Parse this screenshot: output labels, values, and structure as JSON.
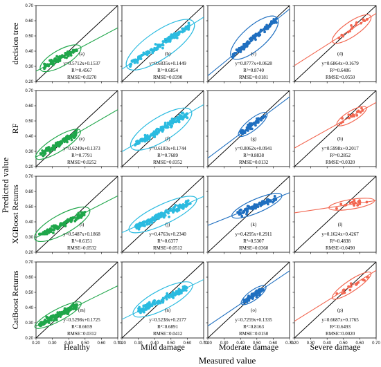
{
  "figure": {
    "xlabel": "Measured value",
    "ylabel": "Predicted value",
    "columns": [
      "Healthy",
      "Mild damage",
      "Moderate damage",
      "Severe damage"
    ],
    "rows": [
      "decision tree",
      "RF",
      "XGBoost Returns",
      "CatBoost Returns"
    ],
    "colors": [
      "#1fa64a",
      "#2bbbe0",
      "#1f6fc0",
      "#f26650"
    ]
  },
  "chart_data": [
    {
      "type": "scatter",
      "row": "decision tree",
      "column": "Healthy",
      "label": "(a)",
      "equation": "y=0.5712x+0.1537",
      "r2": "R²=0.4567",
      "rmse": "RMSE=0.0270",
      "slope": 0.5712,
      "intercept": 0.1537,
      "x_range": [
        0.25,
        0.45
      ],
      "y_range": [
        0.26,
        0.45
      ],
      "n": 90,
      "xlim": [
        0.2,
        0.7
      ],
      "ylim": [
        0.2,
        0.7
      ]
    },
    {
      "type": "scatter",
      "row": "decision tree",
      "column": "Mild damage",
      "label": "(b)",
      "equation": "y=0.6835x+0.1449",
      "r2": "R²=0.6854",
      "rmse": "RMSE=0.0390",
      "slope": 0.6835,
      "intercept": 0.1449,
      "x_range": [
        0.25,
        0.62
      ],
      "y_range": [
        0.3,
        0.62
      ],
      "n": 140,
      "xlim": [
        0.2,
        0.7
      ],
      "ylim": [
        0.2,
        0.7
      ]
    },
    {
      "type": "scatter",
      "row": "decision tree",
      "column": "Moderate damage",
      "label": "(c)",
      "equation": "y=0.8777x+0.0628",
      "r2": "R²=0.8740",
      "rmse": "RMSE=0.0181",
      "slope": 0.8777,
      "intercept": 0.0628,
      "x_range": [
        0.35,
        0.62
      ],
      "y_range": [
        0.35,
        0.62
      ],
      "n": 110,
      "xlim": [
        0.2,
        0.7
      ],
      "ylim": [
        0.2,
        0.7
      ]
    },
    {
      "type": "scatter",
      "row": "decision tree",
      "column": "Severe damage",
      "label": "(d)",
      "equation": "y=0.6864x+0.1679",
      "r2": "R²=0.6486",
      "rmse": "RMSE=0.0550",
      "slope": 0.6864,
      "intercept": 0.1679,
      "x_range": [
        0.45,
        0.65
      ],
      "y_range": [
        0.45,
        0.62
      ],
      "n": 16,
      "xlim": [
        0.2,
        0.7
      ],
      "ylim": [
        0.2,
        0.7
      ]
    },
    {
      "type": "scatter",
      "row": "RF",
      "column": "Healthy",
      "label": "(e)",
      "equation": "y=0.6249x+0.1373",
      "r2": "R²=0.7791",
      "rmse": "RMSE=0.0252",
      "slope": 0.6249,
      "intercept": 0.1373,
      "x_range": [
        0.22,
        0.45
      ],
      "y_range": [
        0.27,
        0.44
      ],
      "n": 110,
      "xlim": [
        0.2,
        0.7
      ],
      "ylim": [
        0.2,
        0.7
      ]
    },
    {
      "type": "scatter",
      "row": "RF",
      "column": "Mild damage",
      "label": "(f)",
      "equation": "y=0.6183x+0.1744",
      "r2": "R²=0.7689",
      "rmse": "RMSE=0.0352",
      "slope": 0.6183,
      "intercept": 0.1744,
      "x_range": [
        0.28,
        0.6
      ],
      "y_range": [
        0.3,
        0.58
      ],
      "n": 150,
      "xlim": [
        0.2,
        0.7
      ],
      "ylim": [
        0.2,
        0.7
      ]
    },
    {
      "type": "scatter",
      "row": "RF",
      "column": "Moderate damage",
      "label": "(g)",
      "equation": "y=0.8062x+0.0941",
      "r2": "R²=0.8838",
      "rmse": "RMSE=0.0132",
      "slope": 0.8062,
      "intercept": 0.0941,
      "x_range": [
        0.4,
        0.55
      ],
      "y_range": [
        0.4,
        0.53
      ],
      "n": 70,
      "xlim": [
        0.2,
        0.7
      ],
      "ylim": [
        0.2,
        0.7
      ]
    },
    {
      "type": "scatter",
      "row": "RF",
      "column": "Severe damage",
      "label": "(h)",
      "equation": "y=0.5998x+0.2017",
      "r2": "R²=0.2852",
      "rmse": "RMSE=0.0320",
      "slope": 0.5998,
      "intercept": 0.2017,
      "x_range": [
        0.48,
        0.62
      ],
      "y_range": [
        0.48,
        0.6
      ],
      "n": 16,
      "xlim": [
        0.2,
        0.7
      ],
      "ylim": [
        0.2,
        0.7
      ]
    },
    {
      "type": "scatter",
      "row": "XGBoost Returns",
      "column": "Healthy",
      "label": "(i)",
      "equation": "y=0.5487x+0.1868",
      "r2": "R²=0.6151",
      "rmse": "RMSE=0.0532",
      "slope": 0.5487,
      "intercept": 0.1868,
      "x_range": [
        0.22,
        0.5
      ],
      "y_range": [
        0.32,
        0.55
      ],
      "n": 130,
      "xlim": [
        0.2,
        0.7
      ],
      "ylim": [
        0.2,
        0.7
      ]
    },
    {
      "type": "scatter",
      "row": "XGBoost Returns",
      "column": "Mild damage",
      "label": "(j)",
      "equation": "y=0.4763x+0.2340",
      "r2": "R²=0.6377",
      "rmse": "RMSE=0.0512",
      "slope": 0.4763,
      "intercept": 0.234,
      "x_range": [
        0.28,
        0.62
      ],
      "y_range": [
        0.32,
        0.55
      ],
      "n": 150,
      "xlim": [
        0.2,
        0.7
      ],
      "ylim": [
        0.2,
        0.7
      ]
    },
    {
      "type": "scatter",
      "row": "XGBoost Returns",
      "column": "Moderate damage",
      "label": "(k)",
      "equation": "y=0.4295x+0.2911",
      "r2": "R²=0.5307",
      "rmse": "RMSE=0.0360",
      "slope": 0.4295,
      "intercept": 0.2911,
      "x_range": [
        0.38,
        0.62
      ],
      "y_range": [
        0.42,
        0.58
      ],
      "n": 80,
      "xlim": [
        0.2,
        0.7
      ],
      "ylim": [
        0.2,
        0.7
      ]
    },
    {
      "type": "scatter",
      "row": "XGBoost Returns",
      "column": "Severe damage",
      "label": "(l)",
      "equation": "y=0.1624x+0.4267",
      "r2": "R²=0.4838",
      "rmse": "RMSE=0.0490",
      "slope": 0.1624,
      "intercept": 0.4267,
      "x_range": [
        0.45,
        0.65
      ],
      "y_range": [
        0.48,
        0.54
      ],
      "n": 16,
      "xlim": [
        0.2,
        0.7
      ],
      "ylim": [
        0.2,
        0.7
      ]
    },
    {
      "type": "scatter",
      "row": "CatBoost Returns",
      "column": "Healthy",
      "label": "(m)",
      "equation": "y=0.5298x+0.1725",
      "r2": "R²=0.6659",
      "rmse": "RMSE=0.0312",
      "slope": 0.5298,
      "intercept": 0.1725,
      "x_range": [
        0.22,
        0.45
      ],
      "y_range": [
        0.28,
        0.42
      ],
      "n": 130,
      "xlim": [
        0.2,
        0.7
      ],
      "ylim": [
        0.2,
        0.7
      ]
    },
    {
      "type": "scatter",
      "row": "CatBoost Returns",
      "column": "Mild damage",
      "label": "(n)",
      "equation": "y=0.5238x+0.2177",
      "r2": "R²=0.6891",
      "rmse": "RMSE=0.0412",
      "slope": 0.5238,
      "intercept": 0.2177,
      "x_range": [
        0.3,
        0.6
      ],
      "y_range": [
        0.32,
        0.55
      ],
      "n": 140,
      "xlim": [
        0.2,
        0.7
      ],
      "ylim": [
        0.2,
        0.7
      ]
    },
    {
      "type": "scatter",
      "row": "CatBoost Returns",
      "column": "Moderate damage",
      "label": "(o)",
      "equation": "y=0.7259x+0.1335",
      "r2": "R²=0.8163",
      "rmse": "RMSE=0.0150",
      "slope": 0.7259,
      "intercept": 0.1335,
      "x_range": [
        0.42,
        0.54
      ],
      "y_range": [
        0.43,
        0.52
      ],
      "n": 70,
      "xlim": [
        0.2,
        0.7
      ],
      "ylim": [
        0.2,
        0.7
      ]
    },
    {
      "type": "scatter",
      "row": "CatBoost Returns",
      "column": "Severe damage",
      "label": "(p)",
      "equation": "y=0.6687x+0.1765",
      "r2": "R²=0.6493",
      "rmse": "RMSE=0.0020",
      "slope": 0.6687,
      "intercept": 0.1765,
      "x_range": [
        0.45,
        0.65
      ],
      "y_range": [
        0.47,
        0.6
      ],
      "n": 18,
      "xlim": [
        0.2,
        0.7
      ],
      "ylim": [
        0.2,
        0.7
      ]
    }
  ],
  "ticks": {
    "x": [
      "0.20",
      "0.30",
      "0.40",
      "0.50",
      "0.60",
      "0.70"
    ],
    "y": [
      "0.20",
      "0.30",
      "0.40",
      "0.50",
      "0.60",
      "0.70"
    ]
  }
}
